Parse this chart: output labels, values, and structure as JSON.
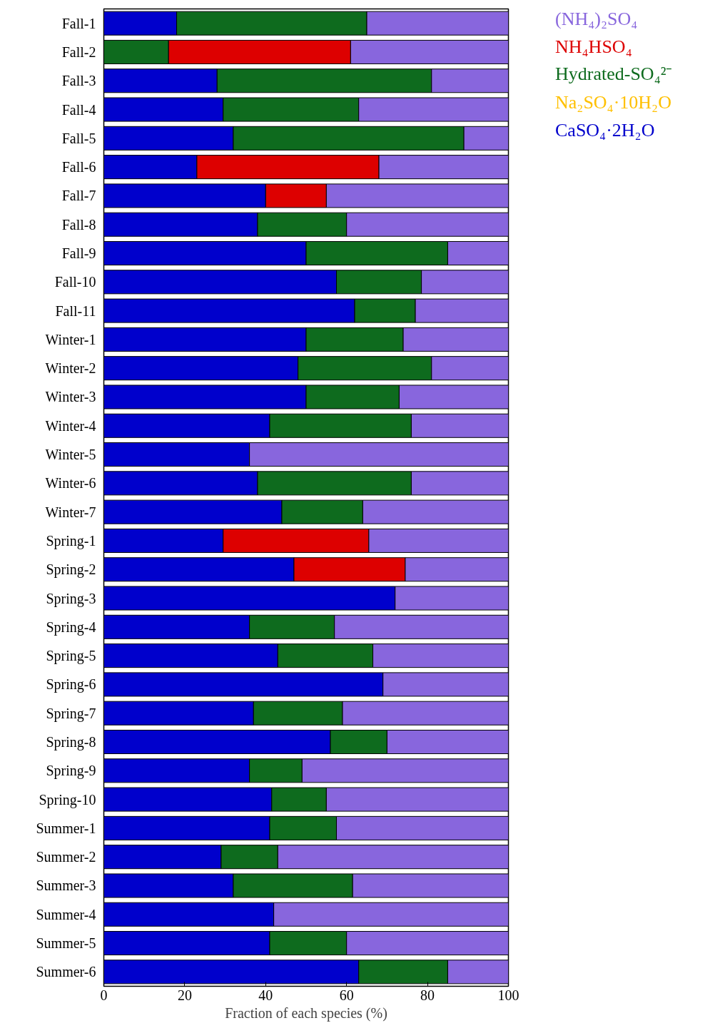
{
  "chart_data": {
    "type": "bar",
    "orientation": "horizontal",
    "stacked": true,
    "xlabel": "Fraction of each species (%)",
    "categories": [
      "Fall-1",
      "Fall-2",
      "Fall-3",
      "Fall-4",
      "Fall-5",
      "Fall-6",
      "Fall-7",
      "Fall-8",
      "Fall-9",
      "Fall-10",
      "Fall-11",
      "Winter-1",
      "Winter-2",
      "Winter-3",
      "Winter-4",
      "Winter-5",
      "Winter-6",
      "Winter-7",
      "Spring-1",
      "Spring-2",
      "Spring-3",
      "Spring-4",
      "Spring-5",
      "Spring-6",
      "Spring-7",
      "Spring-8",
      "Spring-9",
      "Spring-10",
      "Summer-1",
      "Summer-2",
      "Summer-3",
      "Summer-4",
      "Summer-5",
      "Summer-6"
    ],
    "series": [
      {
        "name": "CaSO₄·2H₂O",
        "color": "#0000cc",
        "values": [
          18,
          0,
          28,
          29.5,
          32,
          23,
          40,
          38,
          50,
          57.5,
          62,
          50,
          48,
          50,
          41,
          36,
          38,
          44,
          29.5,
          47,
          72,
          36,
          43,
          69,
          37,
          56,
          36,
          41.5,
          41,
          29,
          32,
          42,
          41,
          63
        ]
      },
      {
        "name": "Na₂SO₄·10H₂O",
        "color": "#ffc000",
        "values": [
          0,
          0,
          0,
          0,
          0,
          0,
          0,
          0,
          0,
          0,
          0,
          0,
          0,
          0,
          0,
          0,
          0,
          0,
          0,
          0,
          0,
          0,
          0,
          0,
          0,
          0,
          0,
          0,
          0,
          0,
          0,
          0,
          0,
          0
        ]
      },
      {
        "name": "Hydrated-SO₄²⁻",
        "color": "#0e6b1e",
        "values": [
          47,
          16,
          53,
          33.5,
          57,
          0,
          0,
          22,
          35,
          21,
          15,
          24,
          33,
          23,
          35,
          0,
          38,
          20,
          0,
          0,
          0,
          21,
          23.5,
          0,
          22,
          14,
          13,
          13.5,
          16.5,
          14,
          29.5,
          0,
          19,
          22
        ]
      },
      {
        "name": "NH₄HSO₄",
        "color": "#dd0000",
        "values": [
          0,
          45,
          0,
          0,
          0,
          45,
          15,
          0,
          0,
          0,
          0,
          0,
          0,
          0,
          0,
          0,
          0,
          0,
          36,
          27.5,
          0,
          0,
          0,
          0,
          0,
          0,
          0,
          0,
          0,
          0,
          0,
          0,
          0,
          0
        ]
      },
      {
        "name": "(NH₄)₂SO₄",
        "color": "#8866dd",
        "values": [
          35,
          39,
          19,
          37,
          11,
          32,
          45,
          40,
          15,
          21.5,
          23,
          26,
          19,
          27,
          24,
          64,
          24,
          36,
          34.5,
          25.5,
          28,
          43,
          33.5,
          31,
          41,
          30,
          51,
          45,
          42.5,
          57,
          38.5,
          58,
          40,
          15
        ]
      }
    ],
    "xlim": [
      0,
      100
    ],
    "xticks": [
      0,
      20,
      40,
      60,
      80,
      100
    ],
    "grid": false,
    "legend": "top right"
  }
}
